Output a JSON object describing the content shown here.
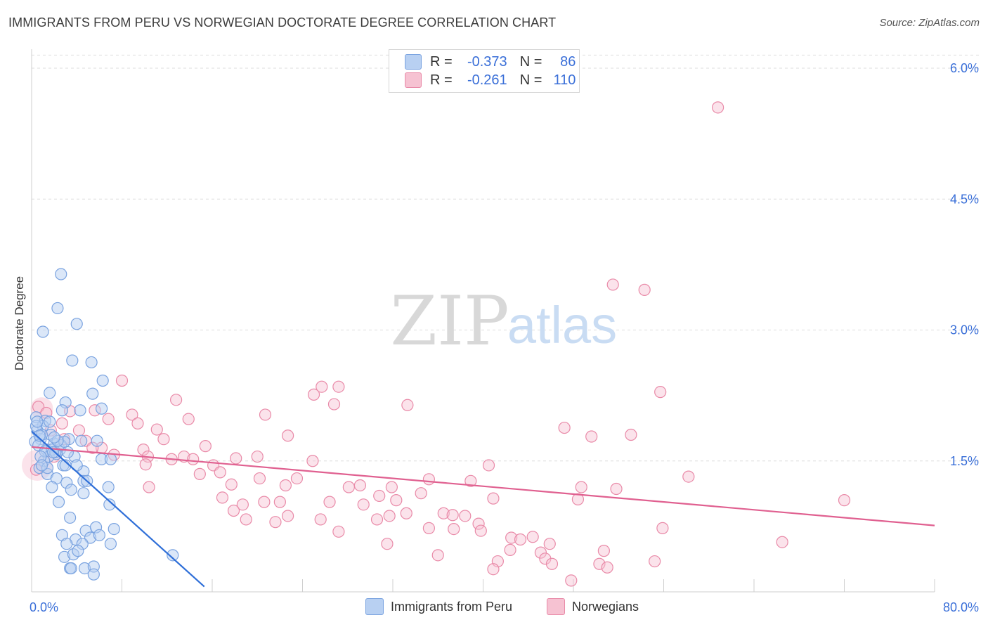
{
  "header": {
    "title": "IMMIGRANTS FROM PERU VS NORWEGIAN DOCTORATE DEGREE CORRELATION CHART",
    "source": "Source: ZipAtlas.com"
  },
  "watermark": {
    "zip": "ZIP",
    "atlas": "atlas"
  },
  "legend": {
    "r_label": "R =",
    "n_label": "N =",
    "series1": {
      "r": "-0.373",
      "n": "86"
    },
    "series2": {
      "r": "-0.261",
      "n": "110"
    }
  },
  "colors": {
    "blue_fill": "#b8d0f2",
    "blue_stroke": "#7aa3e0",
    "blue_line": "#2f6fd8",
    "pink_fill": "#f6c2d2",
    "pink_stroke": "#e98aa8",
    "pink_line": "#e06090",
    "axis_label": "#3a6fd8",
    "grid": "#dddddd"
  },
  "chart_data": {
    "type": "scatter",
    "title": "IMMIGRANTS FROM PERU VS NORWEGIAN DOCTORATE DEGREE CORRELATION CHART",
    "xlabel": "",
    "ylabel": "Doctorate Degree",
    "xlim": [
      0,
      80
    ],
    "ylim": [
      0,
      6.2
    ],
    "x_tick_labels": [
      "0.0%",
      "80.0%"
    ],
    "y_ticks": [
      1.5,
      3.0,
      4.5,
      6.0
    ],
    "y_tick_labels": [
      "1.5%",
      "3.0%",
      "4.5%",
      "6.0%"
    ],
    "series": [
      {
        "name": "Immigrants from Peru",
        "r": -0.373,
        "n": 86,
        "trend": {
          "x": [
            0.0,
            15.3
          ],
          "y": [
            1.84,
            0.06
          ]
        },
        "points": [
          [
            2.6,
            3.64
          ],
          [
            2.3,
            3.25
          ],
          [
            1.0,
            2.98
          ],
          [
            4.0,
            3.07
          ],
          [
            3.6,
            2.65
          ],
          [
            5.3,
            2.63
          ],
          [
            6.3,
            2.42
          ],
          [
            1.6,
            2.28
          ],
          [
            5.4,
            2.27
          ],
          [
            3.0,
            2.17
          ],
          [
            4.3,
            2.08
          ],
          [
            6.2,
            2.1
          ],
          [
            0.4,
            2.0
          ],
          [
            1.2,
            1.96
          ],
          [
            2.7,
            2.08
          ],
          [
            1.7,
            1.8
          ],
          [
            1.0,
            1.9
          ],
          [
            0.5,
            1.85
          ],
          [
            0.8,
            1.75
          ],
          [
            1.3,
            1.63
          ],
          [
            2.0,
            1.7
          ],
          [
            2.2,
            1.58
          ],
          [
            3.3,
            1.75
          ],
          [
            4.4,
            1.73
          ],
          [
            5.8,
            1.73
          ],
          [
            1.5,
            1.55
          ],
          [
            2.5,
            1.63
          ],
          [
            1.1,
            1.5
          ],
          [
            2.8,
            1.45
          ],
          [
            3.8,
            1.55
          ],
          [
            4.6,
            1.38
          ],
          [
            6.2,
            1.52
          ],
          [
            7.0,
            1.52
          ],
          [
            0.7,
            1.42
          ],
          [
            1.4,
            1.35
          ],
          [
            2.2,
            1.3
          ],
          [
            3.1,
            1.25
          ],
          [
            4.6,
            1.27
          ],
          [
            6.8,
            1.2
          ],
          [
            1.8,
            1.2
          ],
          [
            3.5,
            1.17
          ],
          [
            4.6,
            1.13
          ],
          [
            2.4,
            1.03
          ],
          [
            6.9,
            1.0
          ],
          [
            3.4,
            0.85
          ],
          [
            4.8,
            0.7
          ],
          [
            5.7,
            0.74
          ],
          [
            7.3,
            0.72
          ],
          [
            2.7,
            0.65
          ],
          [
            3.9,
            0.6
          ],
          [
            5.2,
            0.62
          ],
          [
            6.0,
            0.65
          ],
          [
            3.1,
            0.55
          ],
          [
            4.5,
            0.55
          ],
          [
            7.0,
            0.55
          ],
          [
            2.9,
            0.4
          ],
          [
            3.7,
            0.43
          ],
          [
            4.1,
            0.47
          ],
          [
            12.5,
            0.42
          ],
          [
            3.4,
            0.27
          ],
          [
            4.7,
            0.27
          ],
          [
            5.5,
            0.29
          ],
          [
            5.5,
            0.2
          ],
          [
            0.3,
            1.72
          ],
          [
            0.6,
            1.68
          ],
          [
            0.9,
            1.8
          ],
          [
            1.2,
            1.61
          ],
          [
            0.4,
            1.9
          ],
          [
            0.5,
            1.95
          ],
          [
            1.8,
            1.63
          ],
          [
            2.1,
            1.6
          ],
          [
            2.6,
            1.68
          ],
          [
            3.0,
            1.45
          ],
          [
            1.6,
            1.95
          ],
          [
            0.8,
            1.55
          ],
          [
            1.4,
            1.42
          ],
          [
            2.9,
            1.72
          ],
          [
            4.0,
            1.45
          ],
          [
            4.9,
            1.27
          ],
          [
            0.7,
            1.79
          ],
          [
            1.9,
            1.6
          ],
          [
            2.3,
            1.73
          ],
          [
            3.2,
            1.6
          ],
          [
            3.5,
            0.27
          ],
          [
            2.0,
            1.77
          ],
          [
            0.9,
            1.45
          ]
        ]
      },
      {
        "name": "Norwegians",
        "r": -0.261,
        "n": 110,
        "trend": {
          "x": [
            0.0,
            80.0
          ],
          "y": [
            1.66,
            0.76
          ]
        },
        "points": [
          [
            60.8,
            5.55
          ],
          [
            51.5,
            3.52
          ],
          [
            54.3,
            3.46
          ],
          [
            8.0,
            2.42
          ],
          [
            25.7,
            2.35
          ],
          [
            27.2,
            2.35
          ],
          [
            25.0,
            2.26
          ],
          [
            55.7,
            2.29
          ],
          [
            12.8,
            2.2
          ],
          [
            33.3,
            2.14
          ],
          [
            0.6,
            2.12
          ],
          [
            1.3,
            2.05
          ],
          [
            3.4,
            2.07
          ],
          [
            5.6,
            2.08
          ],
          [
            8.9,
            2.03
          ],
          [
            13.9,
            1.98
          ],
          [
            20.7,
            2.03
          ],
          [
            2.7,
            1.93
          ],
          [
            6.8,
            1.98
          ],
          [
            9.4,
            1.93
          ],
          [
            47.2,
            1.88
          ],
          [
            1.7,
            1.85
          ],
          [
            4.2,
            1.85
          ],
          [
            11.1,
            1.86
          ],
          [
            22.7,
            1.79
          ],
          [
            49.6,
            1.78
          ],
          [
            53.1,
            1.8
          ],
          [
            2.9,
            1.75
          ],
          [
            4.8,
            1.73
          ],
          [
            9.9,
            1.63
          ],
          [
            15.4,
            1.67
          ],
          [
            10.3,
            1.55
          ],
          [
            12.4,
            1.52
          ],
          [
            13.5,
            1.55
          ],
          [
            14.3,
            1.52
          ],
          [
            18.1,
            1.53
          ],
          [
            20.0,
            1.55
          ],
          [
            24.9,
            1.5
          ],
          [
            40.5,
            1.45
          ],
          [
            16.1,
            1.45
          ],
          [
            16.7,
            1.37
          ],
          [
            10.1,
            1.46
          ],
          [
            14.9,
            1.35
          ],
          [
            20.2,
            1.3
          ],
          [
            23.5,
            1.3
          ],
          [
            35.2,
            1.29
          ],
          [
            58.2,
            1.32
          ],
          [
            38.9,
            1.27
          ],
          [
            28.1,
            1.2
          ],
          [
            29.1,
            1.22
          ],
          [
            31.9,
            1.2
          ],
          [
            48.7,
            1.2
          ],
          [
            51.8,
            1.18
          ],
          [
            17.7,
            1.23
          ],
          [
            22.5,
            1.22
          ],
          [
            10.4,
            1.2
          ],
          [
            30.8,
            1.1
          ],
          [
            32.3,
            1.05
          ],
          [
            34.5,
            1.13
          ],
          [
            40.9,
            1.07
          ],
          [
            48.4,
            1.06
          ],
          [
            72.0,
            1.05
          ],
          [
            16.9,
            1.08
          ],
          [
            18.7,
            1.0
          ],
          [
            20.6,
            1.03
          ],
          [
            22.0,
            1.03
          ],
          [
            26.4,
            1.03
          ],
          [
            29.4,
            1.0
          ],
          [
            17.9,
            0.93
          ],
          [
            22.7,
            0.87
          ],
          [
            31.7,
            0.87
          ],
          [
            33.2,
            0.9
          ],
          [
            36.5,
            0.9
          ],
          [
            37.3,
            0.88
          ],
          [
            38.4,
            0.87
          ],
          [
            19.0,
            0.83
          ],
          [
            21.6,
            0.8
          ],
          [
            25.6,
            0.83
          ],
          [
            30.6,
            0.83
          ],
          [
            39.6,
            0.78
          ],
          [
            35.2,
            0.73
          ],
          [
            37.4,
            0.72
          ],
          [
            39.8,
            0.7
          ],
          [
            27.2,
            0.69
          ],
          [
            55.9,
            0.73
          ],
          [
            42.5,
            0.62
          ],
          [
            43.3,
            0.6
          ],
          [
            44.4,
            0.63
          ],
          [
            31.5,
            0.55
          ],
          [
            45.9,
            0.55
          ],
          [
            66.5,
            0.57
          ],
          [
            42.4,
            0.48
          ],
          [
            45.1,
            0.45
          ],
          [
            50.7,
            0.47
          ],
          [
            36.0,
            0.42
          ],
          [
            41.3,
            0.35
          ],
          [
            45.5,
            0.38
          ],
          [
            46.1,
            0.32
          ],
          [
            50.3,
            0.32
          ],
          [
            51.0,
            0.28
          ],
          [
            55.2,
            0.35
          ],
          [
            40.9,
            0.26
          ],
          [
            47.8,
            0.13
          ],
          [
            2.0,
            1.55
          ],
          [
            6.2,
            1.65
          ],
          [
            0.4,
            1.4
          ],
          [
            5.4,
            1.65
          ],
          [
            7.3,
            1.57
          ],
          [
            11.7,
            1.75
          ],
          [
            26.8,
            2.15
          ]
        ]
      }
    ]
  }
}
